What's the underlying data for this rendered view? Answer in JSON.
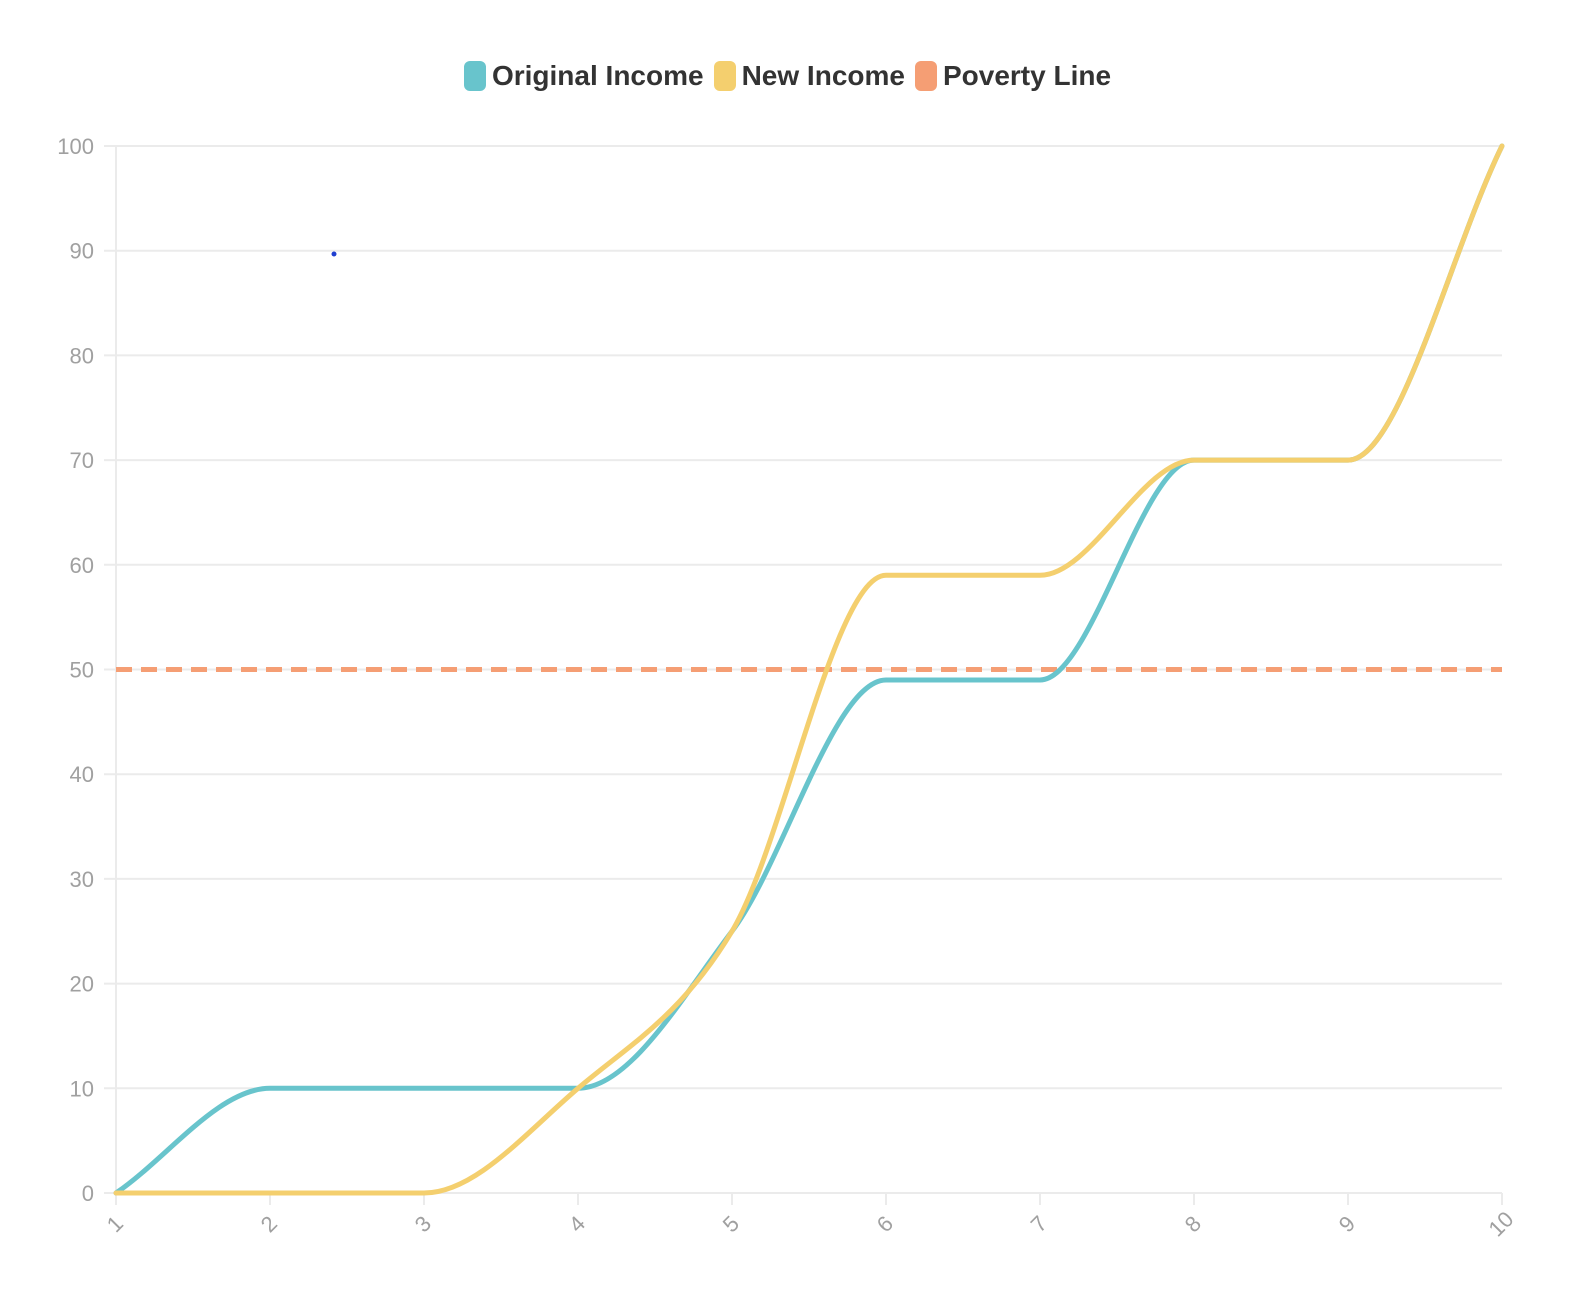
{
  "chart_data": {
    "type": "line",
    "title": "",
    "xlabel": "",
    "ylabel": "",
    "x": [
      1,
      2,
      3,
      4,
      5,
      6,
      7,
      8,
      9,
      10
    ],
    "ylim": [
      0,
      100
    ],
    "yticks": [
      0,
      10,
      20,
      30,
      40,
      50,
      60,
      70,
      80,
      90,
      100
    ],
    "grid": true,
    "legend_position": "top-center",
    "series": [
      {
        "name": "Original Income",
        "color": "#68c4cc",
        "style": "solid",
        "values": [
          0,
          10,
          10,
          10,
          25,
          49,
          49,
          70,
          70,
          100
        ]
      },
      {
        "name": "New Income",
        "color": "#f4cf6e",
        "style": "solid",
        "values": [
          0,
          0,
          0,
          10,
          25,
          59,
          59,
          70,
          70,
          100
        ]
      },
      {
        "name": "Poverty Line",
        "color": "#f59e74",
        "style": "dashed",
        "values": [
          50,
          50,
          50,
          50,
          50,
          50,
          50,
          50,
          50,
          50
        ]
      }
    ]
  }
}
